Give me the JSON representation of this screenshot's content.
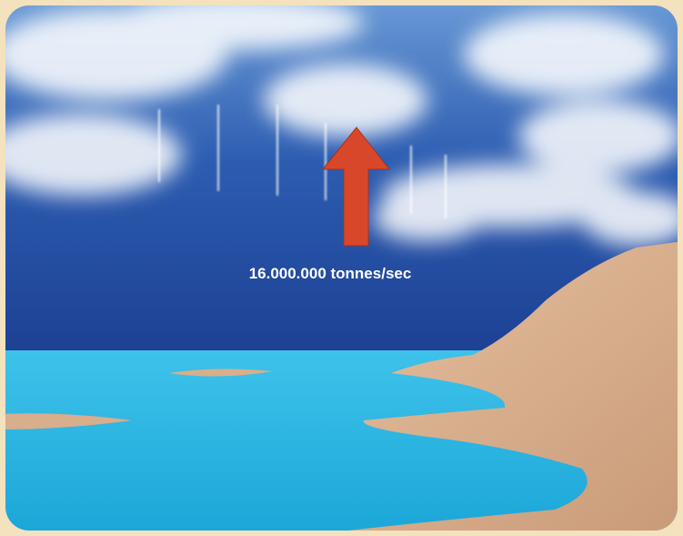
{
  "label": "16.000.000 tonnes/sec"
}
